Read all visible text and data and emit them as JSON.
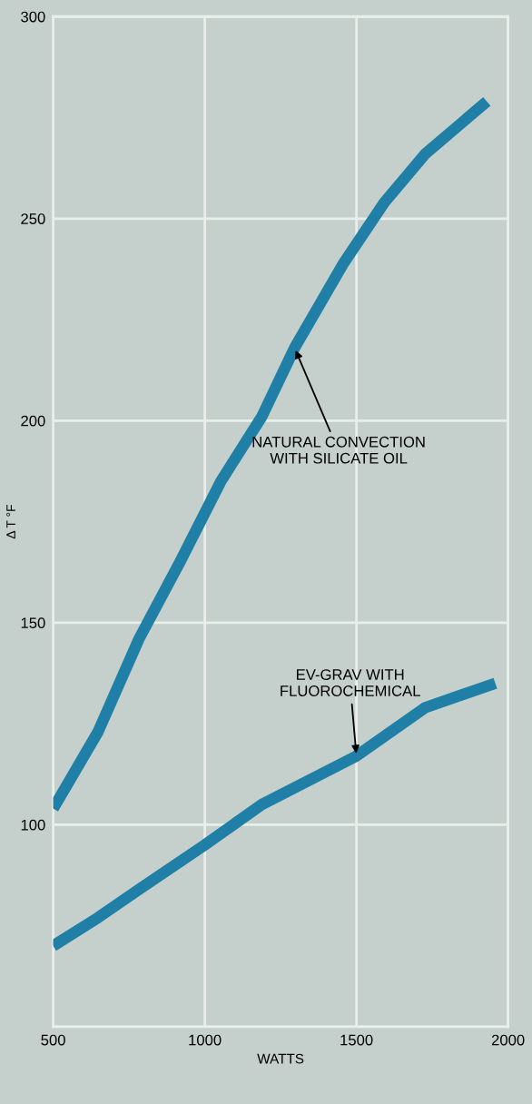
{
  "chart_data": {
    "type": "line",
    "xlabel": "WATTS",
    "ylabel": "Δ T °F",
    "xlim": [
      500,
      2000
    ],
    "ylim": [
      50,
      300
    ],
    "xticks": [
      500,
      1000,
      1500,
      2000
    ],
    "yticks": [
      {
        "value": 50,
        "label": null
      },
      100,
      150,
      200,
      250,
      300
    ],
    "grid": true,
    "marker": "none",
    "line_style": "solid",
    "series": [
      {
        "color": "#1f7fa6",
        "x": [
          500,
          648,
          783,
          918,
          1053,
          1188,
          1296,
          1458,
          1592,
          1727,
          1930
        ],
        "values": [
          104,
          123,
          146,
          165,
          185,
          201,
          218,
          239,
          254,
          266,
          279
        ]
      },
      {
        "color": "#1f7fa6",
        "x": [
          500,
          648,
          783,
          1000,
          1188,
          1500,
          1727,
          1958
        ],
        "values": [
          70,
          77,
          84,
          95,
          105,
          117,
          129,
          135
        ]
      }
    ],
    "annotations": [
      {
        "text": "NATURAL CONVECTION\nWITH SILICATE OIL",
        "x": 1296,
        "y": 218
      },
      {
        "text": "EV-GRAV WITH\nFLUOROCHEMICAL",
        "x": 1500,
        "y": 117
      }
    ]
  }
}
